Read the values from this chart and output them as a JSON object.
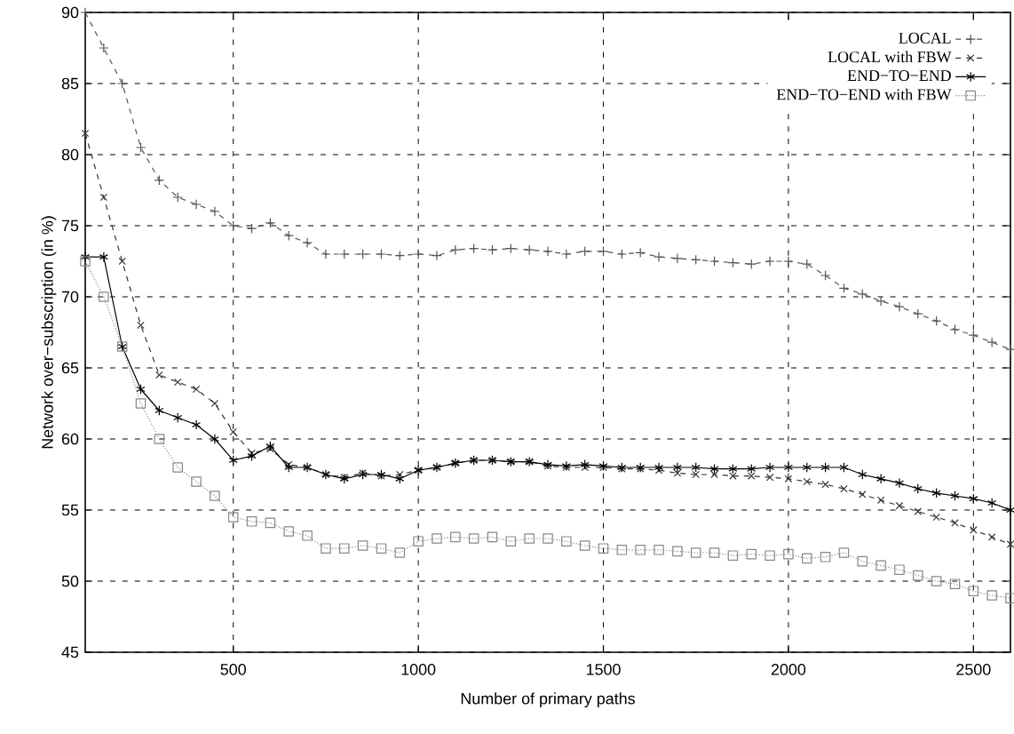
{
  "chart_data": {
    "type": "line",
    "xlabel": "Number of primary paths",
    "ylabel": "Network over−subscription (in %)",
    "x": [
      100,
      150,
      200,
      250,
      300,
      350,
      400,
      450,
      500,
      550,
      600,
      650,
      700,
      750,
      800,
      850,
      900,
      950,
      1000,
      1050,
      1100,
      1150,
      1200,
      1250,
      1300,
      1350,
      1400,
      1450,
      1500,
      1550,
      1600,
      1650,
      1700,
      1750,
      1800,
      1850,
      1900,
      1950,
      2000,
      2050,
      2100,
      2150,
      2200,
      2250,
      2300,
      2350,
      2400,
      2450,
      2500,
      2550,
      2600
    ],
    "series": [
      {
        "name": "LOCAL",
        "color": "#555555",
        "marker": "plus",
        "line_style": "dashed",
        "values": [
          90,
          87.5,
          85,
          80.5,
          78.2,
          77,
          76.5,
          76,
          75,
          74.8,
          75.2,
          74.3,
          73.8,
          73,
          73,
          73,
          73,
          72.9,
          73,
          72.9,
          73.3,
          73.4,
          73.3,
          73.4,
          73.3,
          73.2,
          73,
          73.2,
          73.2,
          73,
          73.1,
          72.8,
          72.7,
          72.6,
          72.5,
          72.4,
          72.3,
          72.5,
          72.5,
          72.3,
          71.5,
          70.6,
          70.2,
          69.7,
          69.3,
          68.8,
          68.3,
          67.7,
          67.3,
          66.8,
          66.3
        ]
      },
      {
        "name": "LOCAL with FBW",
        "color": "#333333",
        "marker": "x",
        "line_style": "dashed",
        "values": [
          81.5,
          77,
          72.5,
          68,
          64.5,
          64,
          63.5,
          62.5,
          60.5,
          59,
          59.3,
          58.2,
          58,
          57.5,
          57.3,
          57.6,
          57.4,
          57.5,
          57.8,
          58,
          58.3,
          58.5,
          58.5,
          58.4,
          58.4,
          58.1,
          58,
          58,
          58,
          57.9,
          57.9,
          57.8,
          57.6,
          57.5,
          57.5,
          57.4,
          57.4,
          57.3,
          57.2,
          57,
          56.8,
          56.5,
          56.1,
          55.7,
          55.3,
          54.9,
          54.5,
          54.1,
          53.6,
          53.1,
          52.6
        ]
      },
      {
        "name": "END−TO−END",
        "color": "#000000",
        "marker": "cross",
        "line_style": "solid",
        "values": [
          72.8,
          72.8,
          66.5,
          63.5,
          62,
          61.5,
          61,
          60,
          58.5,
          58.8,
          59.5,
          58,
          58,
          57.5,
          57.2,
          57.5,
          57.5,
          57.2,
          57.8,
          58,
          58.3,
          58.5,
          58.5,
          58.4,
          58.4,
          58.2,
          58.1,
          58.2,
          58.1,
          58,
          58,
          58,
          58,
          58,
          57.9,
          57.9,
          57.9,
          58,
          58,
          58,
          58,
          58,
          57.5,
          57.2,
          56.9,
          56.5,
          56.2,
          56,
          55.8,
          55.5,
          55
        ]
      },
      {
        "name": "END−TO−END with FBW",
        "color": "#888888",
        "marker": "square",
        "line_style": "dotted",
        "values": [
          72.5,
          70,
          66.5,
          62.5,
          60,
          58,
          57,
          56,
          54.5,
          54.2,
          54.1,
          53.5,
          53.2,
          52.3,
          52.3,
          52.5,
          52.3,
          52,
          52.8,
          53,
          53.1,
          53,
          53.1,
          52.8,
          53,
          53,
          52.8,
          52.5,
          52.3,
          52.2,
          52.2,
          52.2,
          52.1,
          52,
          52,
          51.8,
          51.9,
          51.8,
          51.9,
          51.6,
          51.7,
          52,
          51.4,
          51.1,
          50.8,
          50.4,
          50,
          49.8,
          49.3,
          49,
          48.8
        ]
      }
    ],
    "xlim": [
      100,
      2600
    ],
    "xticks": [
      500,
      1000,
      1500,
      2000,
      2500
    ],
    "ylim": [
      45,
      90
    ],
    "yticks": [
      45,
      50,
      55,
      60,
      65,
      70,
      75,
      80,
      85,
      90
    ],
    "grid": true,
    "legend": "top right"
  }
}
